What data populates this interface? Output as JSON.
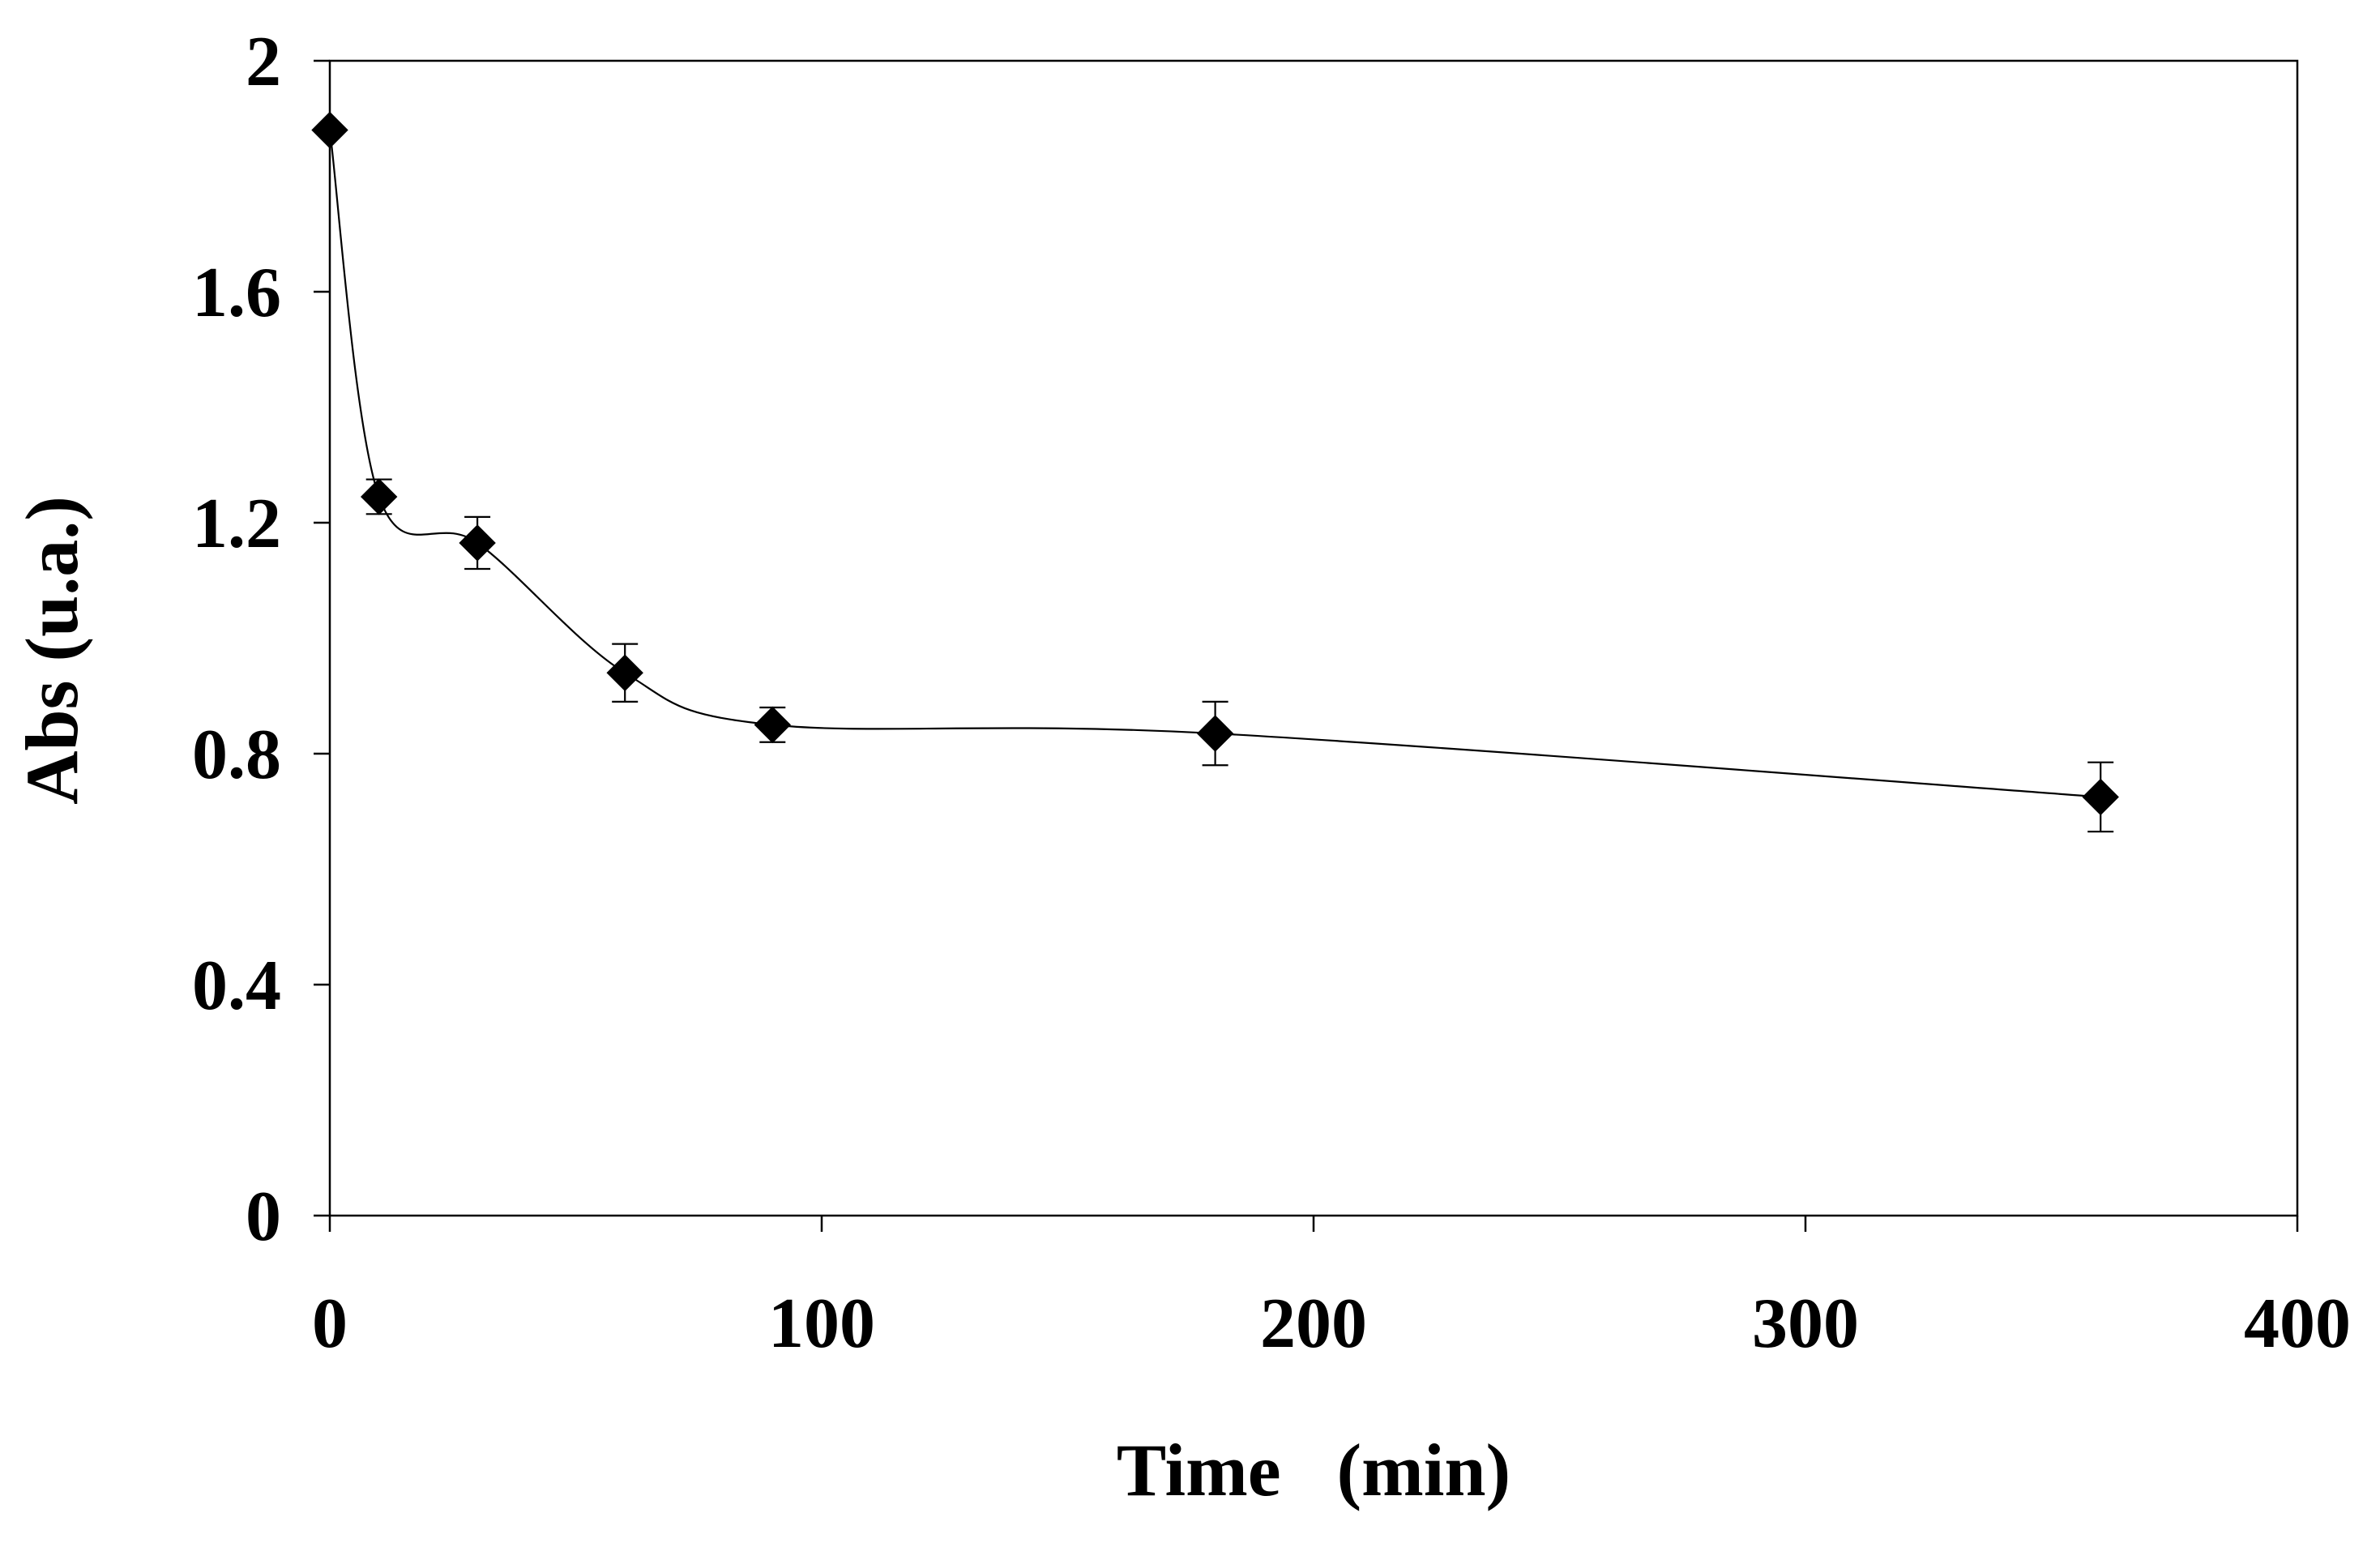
{
  "chart_data": {
    "type": "line",
    "title": "",
    "xlabel": "Time   (min)",
    "ylabel": "Abs (u.a.)",
    "xlim": [
      0,
      400
    ],
    "ylim": [
      0,
      2
    ],
    "x_ticks": [
      0,
      100,
      200,
      300,
      400
    ],
    "x_tick_labels": [
      "0",
      "100",
      "200",
      "300",
      "400"
    ],
    "y_ticks": [
      0,
      0.4,
      0.8,
      1.2,
      1.6,
      2
    ],
    "y_tick_labels": [
      "0",
      "0.4",
      "0.8",
      "1.2",
      "1.6",
      "2"
    ],
    "grid": false,
    "legend": "none",
    "series": [
      {
        "name": "Abs",
        "marker": "diamond",
        "line": "smooth",
        "color": "#000000",
        "x": [
          0,
          10,
          30,
          60,
          90,
          180,
          360
        ],
        "values": [
          1.88,
          1.245,
          1.165,
          0.94,
          0.85,
          0.835,
          0.725
        ],
        "error": [
          0.0,
          0.03,
          0.045,
          0.05,
          0.03,
          0.055,
          0.06
        ]
      }
    ]
  }
}
